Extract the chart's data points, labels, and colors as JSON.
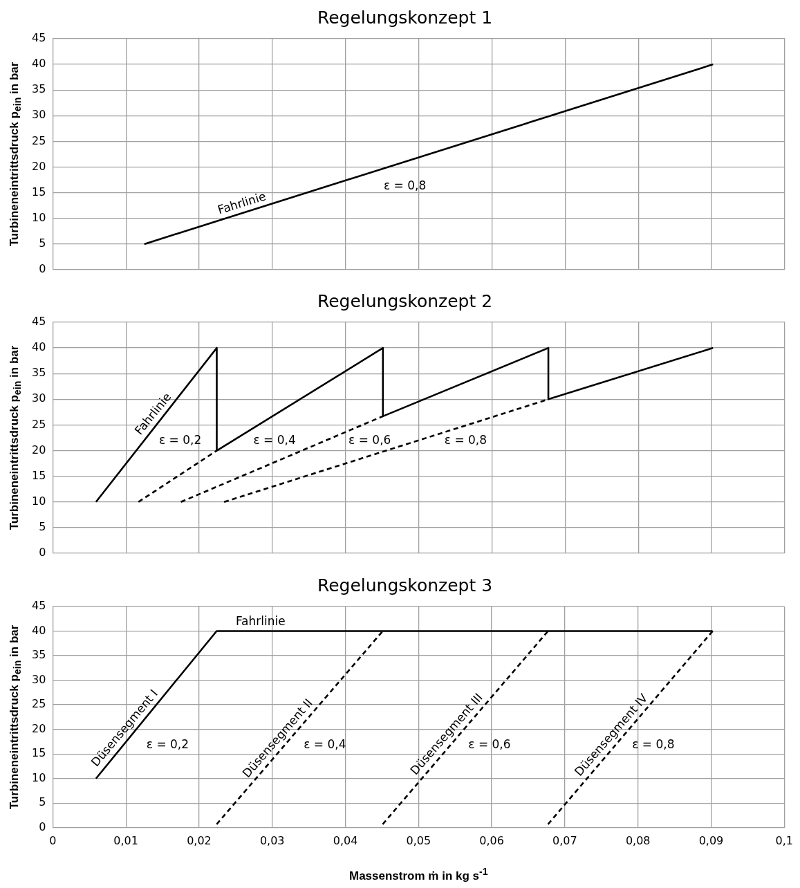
{
  "chart_data": [
    {
      "type": "line",
      "title": "Regelungskonzept 1",
      "ylabel": "Turbineneintrittsdruck p$_{ein}$ in bar",
      "xlim": [
        0,
        0.1
      ],
      "xticks": [
        {
          "value": 0,
          "label": null
        },
        {
          "value": 0.01,
          "label": null
        },
        {
          "value": 0.02,
          "label": null
        },
        {
          "value": 0.03,
          "label": null
        },
        {
          "value": 0.04,
          "label": null
        },
        {
          "value": 0.05,
          "label": null
        },
        {
          "value": 0.06,
          "label": null
        },
        {
          "value": 0.07,
          "label": null
        },
        {
          "value": 0.08,
          "label": null
        },
        {
          "value": 0.09,
          "label": null
        },
        {
          "value": 0.1,
          "label": null
        }
      ],
      "ylim": [
        0,
        45
      ],
      "yticks": [
        0,
        5,
        10,
        15,
        20,
        25,
        30,
        35,
        40,
        45
      ],
      "grid": true,
      "legend": false,
      "marker": "none",
      "tick_labels": "y",
      "series": [
        {
          "color": "#000000",
          "line_style": "solid",
          "x": [
            0.0125,
            0.0902
          ],
          "values": [
            5,
            40
          ]
        }
      ],
      "annotations": [
        "Fahrlinie",
        "ε = 0,8"
      ]
    },
    {
      "type": "line",
      "title": "Regelungskonzept 2",
      "ylabel": "Turbineneintrittsdruck p$_{ein}$ in bar",
      "xlim": [
        0,
        0.1
      ],
      "xticks": [
        {
          "value": 0,
          "label": null
        },
        {
          "value": 0.01,
          "label": null
        },
        {
          "value": 0.02,
          "label": null
        },
        {
          "value": 0.03,
          "label": null
        },
        {
          "value": 0.04,
          "label": null
        },
        {
          "value": 0.05,
          "label": null
        },
        {
          "value": 0.06,
          "label": null
        },
        {
          "value": 0.07,
          "label": null
        },
        {
          "value": 0.08,
          "label": null
        },
        {
          "value": 0.09,
          "label": null
        },
        {
          "value": 0.1,
          "label": null
        }
      ],
      "ylim": [
        0,
        45
      ],
      "yticks": [
        0,
        5,
        10,
        15,
        20,
        25,
        30,
        35,
        40,
        45
      ],
      "grid": true,
      "legend": false,
      "marker": "none",
      "tick_labels": "y",
      "series": [
        {
          "color": "#000000",
          "line_style": "solid",
          "x": [
            0.0059,
            0.0224,
            0.0224,
            0.0451,
            0.0451,
            0.0677,
            0.0677,
            0.0902
          ],
          "values": [
            10,
            40,
            20,
            40,
            26.7,
            40,
            30,
            40
          ]
        },
        {
          "color": "#000000",
          "line_style": "dashed",
          "x": [
            0.0117,
            0.0224
          ],
          "values": [
            10,
            20
          ]
        },
        {
          "color": "#000000",
          "line_style": "dashed",
          "x": [
            0.0175,
            0.0451
          ],
          "values": [
            10,
            26.7
          ]
        },
        {
          "color": "#000000",
          "line_style": "dashed",
          "x": [
            0.0234,
            0.0677
          ],
          "values": [
            10,
            30
          ]
        }
      ],
      "annotations": [
        "Fahrlinie",
        "ε = 0,2",
        "ε = 0,4",
        "ε = 0,6",
        "ε = 0,8"
      ]
    },
    {
      "type": "line",
      "title": "Regelungskonzept 3",
      "xlabel": "Massenstrom ṁ in kg s$^{-1}$",
      "ylabel": "Turbineneintrittsdruck p$_{ein}$ in bar",
      "xlim": [
        0,
        0.1
      ],
      "xticks": [
        0,
        {
          "value": 0.01,
          "label": "0,01"
        },
        {
          "value": 0.02,
          "label": "0,02"
        },
        {
          "value": 0.03,
          "label": "0,03"
        },
        {
          "value": 0.04,
          "label": "0,04"
        },
        {
          "value": 0.05,
          "label": "0,05"
        },
        {
          "value": 0.06,
          "label": "0,06"
        },
        {
          "value": 0.07,
          "label": "0,07"
        },
        {
          "value": 0.08,
          "label": "0,08"
        },
        {
          "value": 0.09,
          "label": "0,09"
        },
        {
          "value": 0.1,
          "label": "0,1"
        }
      ],
      "ylim": [
        0,
        45
      ],
      "yticks": [
        0,
        5,
        10,
        15,
        20,
        25,
        30,
        35,
        40,
        45
      ],
      "grid": true,
      "legend": false,
      "marker": "none",
      "series": [
        {
          "color": "#000000",
          "line_style": "solid",
          "x": [
            0.0059,
            0.0224,
            0.0902
          ],
          "values": [
            10,
            40,
            40
          ]
        },
        {
          "color": "#000000",
          "line_style": "dashed",
          "x": [
            0.0224,
            0.0451
          ],
          "values": [
            0.7,
            40
          ]
        },
        {
          "color": "#000000",
          "line_style": "dashed",
          "x": [
            0.0451,
            0.0677
          ],
          "values": [
            0.7,
            40
          ]
        },
        {
          "color": "#000000",
          "line_style": "dashed",
          "x": [
            0.0677,
            0.0902
          ],
          "values": [
            0.7,
            40
          ]
        }
      ],
      "annotations": [
        "Fahrlinie",
        "Düsensegment I",
        "ε = 0,2",
        "Düsensegment II",
        "ε = 0,4",
        "Düsensegment III",
        "ε = 0,6",
        "Düsensegment IV",
        "ε = 0,8"
      ]
    }
  ]
}
